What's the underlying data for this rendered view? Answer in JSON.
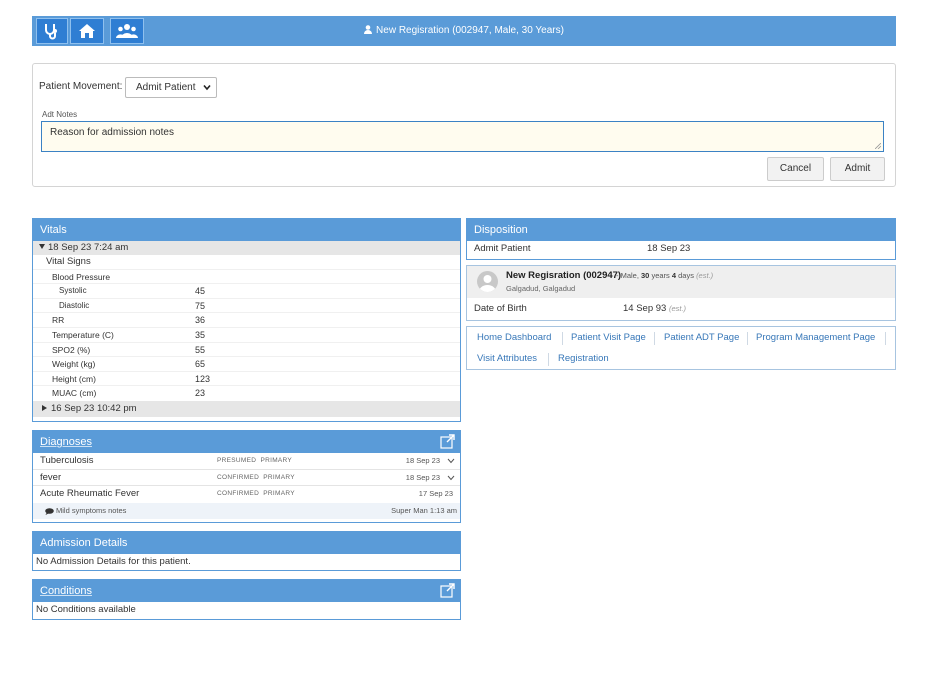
{
  "header": {
    "patient_title": "New Regisration (002947, Male, 30 Years)",
    "nav_icons": [
      "stethoscope-icon",
      "home-icon",
      "users-icon"
    ]
  },
  "movement": {
    "label": "Patient Movement:",
    "selected": "Admit Patient",
    "notes_label": "Adt Notes",
    "notes_value": "Reason for admission notes",
    "cancel_label": "Cancel",
    "admit_label": "Admit"
  },
  "vitals": {
    "title": "Vitals",
    "expanded_date": "18 Sep 23 7:24 am",
    "group_label": "Vital Signs",
    "bp_label": "Blood Pressure",
    "rows": [
      {
        "label": "Systolic",
        "value": "45"
      },
      {
        "label": "Diastolic",
        "value": "75"
      },
      {
        "label": "RR",
        "value": "36"
      },
      {
        "label": "Temperature (C)",
        "value": "35"
      },
      {
        "label": "SPO2 (%)",
        "value": "55"
      },
      {
        "label": "Weight (kg)",
        "value": "65"
      },
      {
        "label": "Height (cm)",
        "value": "123"
      },
      {
        "label": "MUAC (cm)",
        "value": "23"
      }
    ],
    "collapsed_date": "16 Sep 23 10:42 pm"
  },
  "diagnoses": {
    "title": "Diagnoses",
    "rows": [
      {
        "name": "Tuberculosis",
        "certainty": "PRESUMED",
        "order": "PRIMARY",
        "date": "18 Sep 23"
      },
      {
        "name": "fever",
        "certainty": "CONFIRMED",
        "order": "PRIMARY",
        "date": "18 Sep 23"
      },
      {
        "name": "Acute Rheumatic Fever",
        "certainty": "CONFIRMED",
        "order": "PRIMARY",
        "date": "17 Sep 23"
      }
    ],
    "note_text": "Mild symptoms notes",
    "note_author": "Super Man 1:13 am"
  },
  "admission": {
    "title": "Admission Details",
    "empty_text": "No Admission Details for this patient."
  },
  "conditions": {
    "title": "Conditions",
    "empty_text": "No Conditions available"
  },
  "disposition": {
    "title": "Disposition",
    "label": "Admit Patient",
    "date": "18 Sep 23"
  },
  "patient": {
    "name": "New Regisration (002947)",
    "sep": " - Male, ",
    "age_years": "30",
    "years_word": " years ",
    "age_days": "4",
    "days_word": " days ",
    "est": "(est.)",
    "location": "Galgadud, Galgadud",
    "dob_label": "Date of Birth",
    "dob_value": "14 Sep 93"
  },
  "links": [
    "Home Dashboard",
    "Patient Visit Page",
    "Patient ADT Page",
    "Program Management Page",
    "Visit Attributes",
    "Registration"
  ],
  "colors": {
    "accent": "#5a9bd8",
    "nav_button": "#2f7ed3",
    "link": "#3777b8",
    "notes_bg": "#fffcef"
  }
}
